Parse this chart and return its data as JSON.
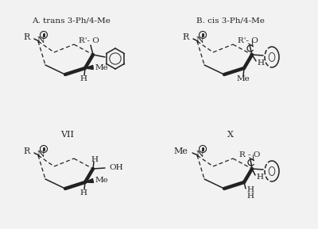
{
  "bg_color": "#f2f2f2",
  "line_color": "#222222",
  "title_A": "A. trans 3-Ph/4-Me",
  "title_B": "B. cis 3-Ph/4-Me",
  "title_VII": "VII",
  "title_X": "X",
  "font_size_title": 7.5,
  "font_size_label": 7.5,
  "fig_w": 4.0,
  "fig_h": 2.89,
  "dpi": 100
}
